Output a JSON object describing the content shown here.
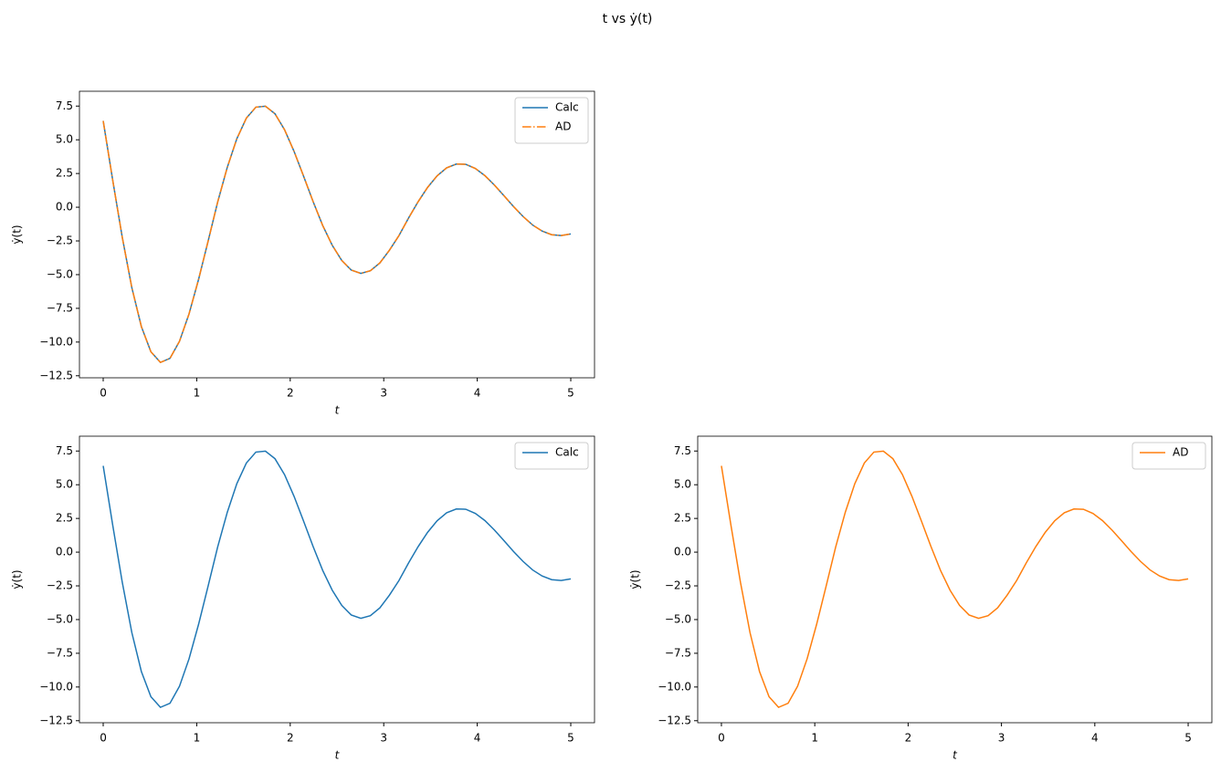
{
  "title": "t vs ẏ(t)",
  "chart_data": [
    {
      "type": "line",
      "xlabel": "t",
      "ylabel": "ẏ(t)",
      "legend": "upper right",
      "xlim": [
        -0.254,
        5.254
      ],
      "ylim": [
        -12.65,
        8.6
      ],
      "xticks": [
        0,
        1,
        2,
        3,
        4,
        5
      ],
      "yticks": [
        {
          "value": -12.5,
          "label": "−12.5"
        },
        {
          "value": -10,
          "label": "−10.0"
        },
        {
          "value": -7.5,
          "label": "−7.5"
        },
        {
          "value": -5,
          "label": "−5.0"
        },
        {
          "value": -2.5,
          "label": "−2.5"
        },
        {
          "value": 0,
          "label": "0.0"
        },
        2.5,
        {
          "value": 5,
          "label": "5.0"
        },
        7.5
      ],
      "x": [
        0,
        0.102,
        0.204,
        0.306,
        0.408,
        0.51,
        0.612,
        0.714,
        0.816,
        0.918,
        1.02,
        1.122,
        1.224,
        1.327,
        1.429,
        1.531,
        1.633,
        1.735,
        1.837,
        1.939,
        2.041,
        2.143,
        2.245,
        2.347,
        2.449,
        2.551,
        2.653,
        2.755,
        2.857,
        2.959,
        3.061,
        3.163,
        3.265,
        3.367,
        3.469,
        3.571,
        3.673,
        3.776,
        3.878,
        3.98,
        4.082,
        4.184,
        4.286,
        4.388,
        4.49,
        4.592,
        4.694,
        4.796,
        4.898,
        5
      ],
      "series": [
        {
          "name": "Calc",
          "color": "#1f77b4",
          "dash": "solid",
          "values": [
            6.4,
            1.99,
            -2.24,
            -5.96,
            -8.85,
            -10.72,
            -11.51,
            -11.21,
            -9.94,
            -7.91,
            -5.35,
            -2.51,
            0.38,
            2.96,
            5.08,
            6.61,
            7.42,
            7.49,
            6.93,
            5.75,
            4.14,
            2.3,
            0.41,
            -1.35,
            -2.82,
            -3.95,
            -4.66,
            -4.91,
            -4.71,
            -4.13,
            -3.19,
            -2.1,
            -0.81,
            0.4,
            1.47,
            2.33,
            2.92,
            3.2,
            3.18,
            2.87,
            2.34,
            1.64,
            0.85,
            0.05,
            -0.69,
            -1.32,
            -1.77,
            -2.04,
            -2.1,
            -1.98
          ]
        },
        {
          "name": "AD",
          "color": "#ff7f0e",
          "dash": "dashdot",
          "values": [
            6.4,
            1.99,
            -2.24,
            -5.96,
            -8.85,
            -10.72,
            -11.51,
            -11.21,
            -9.94,
            -7.91,
            -5.35,
            -2.51,
            0.38,
            2.96,
            5.08,
            6.61,
            7.42,
            7.49,
            6.93,
            5.75,
            4.14,
            2.3,
            0.41,
            -1.35,
            -2.82,
            -3.95,
            -4.66,
            -4.91,
            -4.71,
            -4.13,
            -3.19,
            -2.1,
            -0.81,
            0.4,
            1.47,
            2.33,
            2.92,
            3.2,
            3.18,
            2.87,
            2.34,
            1.64,
            0.85,
            0.05,
            -0.69,
            -1.32,
            -1.77,
            -2.04,
            -2.1,
            -1.98
          ]
        }
      ]
    },
    {
      "type": "line",
      "xlabel": "t",
      "ylabel": "ẏ(t)",
      "legend": "upper right",
      "xlim": [
        -0.254,
        5.254
      ],
      "ylim": [
        -12.65,
        8.6
      ],
      "xticks": [
        0,
        1,
        2,
        3,
        4,
        5
      ],
      "yticks": [
        {
          "value": -12.5,
          "label": "−12.5"
        },
        {
          "value": -10,
          "label": "−10.0"
        },
        {
          "value": -7.5,
          "label": "−7.5"
        },
        {
          "value": -5,
          "label": "−5.0"
        },
        {
          "value": -2.5,
          "label": "−2.5"
        },
        {
          "value": 0,
          "label": "0.0"
        },
        2.5,
        {
          "value": 5,
          "label": "5.0"
        },
        7.5
      ],
      "x": [
        0,
        0.102,
        0.204,
        0.306,
        0.408,
        0.51,
        0.612,
        0.714,
        0.816,
        0.918,
        1.02,
        1.122,
        1.224,
        1.327,
        1.429,
        1.531,
        1.633,
        1.735,
        1.837,
        1.939,
        2.041,
        2.143,
        2.245,
        2.347,
        2.449,
        2.551,
        2.653,
        2.755,
        2.857,
        2.959,
        3.061,
        3.163,
        3.265,
        3.367,
        3.469,
        3.571,
        3.673,
        3.776,
        3.878,
        3.98,
        4.082,
        4.184,
        4.286,
        4.388,
        4.49,
        4.592,
        4.694,
        4.796,
        4.898,
        5
      ],
      "series": [
        {
          "name": "Calc",
          "color": "#1f77b4",
          "dash": "solid",
          "values": [
            6.4,
            1.99,
            -2.24,
            -5.96,
            -8.85,
            -10.72,
            -11.51,
            -11.21,
            -9.94,
            -7.91,
            -5.35,
            -2.51,
            0.38,
            2.96,
            5.08,
            6.61,
            7.42,
            7.49,
            6.93,
            5.75,
            4.14,
            2.3,
            0.41,
            -1.35,
            -2.82,
            -3.95,
            -4.66,
            -4.91,
            -4.71,
            -4.13,
            -3.19,
            -2.1,
            -0.81,
            0.4,
            1.47,
            2.33,
            2.92,
            3.2,
            3.18,
            2.87,
            2.34,
            1.64,
            0.85,
            0.05,
            -0.69,
            -1.32,
            -1.77,
            -2.04,
            -2.1,
            -1.98
          ]
        }
      ]
    },
    {
      "type": "line",
      "xlabel": "t",
      "ylabel": "ẏ(t)",
      "legend": "upper right",
      "xlim": [
        -0.254,
        5.254
      ],
      "ylim": [
        -12.65,
        8.6
      ],
      "xticks": [
        0,
        1,
        2,
        3,
        4,
        5
      ],
      "yticks": [
        {
          "value": -12.5,
          "label": "−12.5"
        },
        {
          "value": -10,
          "label": "−10.0"
        },
        {
          "value": -7.5,
          "label": "−7.5"
        },
        {
          "value": -5,
          "label": "−5.0"
        },
        {
          "value": -2.5,
          "label": "−2.5"
        },
        {
          "value": 0,
          "label": "0.0"
        },
        2.5,
        {
          "value": 5,
          "label": "5.0"
        },
        7.5
      ],
      "x": [
        0,
        0.102,
        0.204,
        0.306,
        0.408,
        0.51,
        0.612,
        0.714,
        0.816,
        0.918,
        1.02,
        1.122,
        1.224,
        1.327,
        1.429,
        1.531,
        1.633,
        1.735,
        1.837,
        1.939,
        2.041,
        2.143,
        2.245,
        2.347,
        2.449,
        2.551,
        2.653,
        2.755,
        2.857,
        2.959,
        3.061,
        3.163,
        3.265,
        3.367,
        3.469,
        3.571,
        3.673,
        3.776,
        3.878,
        3.98,
        4.082,
        4.184,
        4.286,
        4.388,
        4.49,
        4.592,
        4.694,
        4.796,
        4.898,
        5
      ],
      "series": [
        {
          "name": "AD",
          "color": "#ff7f0e",
          "dash": "solid",
          "values": [
            6.4,
            1.99,
            -2.24,
            -5.96,
            -8.85,
            -10.72,
            -11.51,
            -11.21,
            -9.94,
            -7.91,
            -5.35,
            -2.51,
            0.38,
            2.96,
            5.08,
            6.61,
            7.42,
            7.49,
            6.93,
            5.75,
            4.14,
            2.3,
            0.41,
            -1.35,
            -2.82,
            -3.95,
            -4.66,
            -4.91,
            -4.71,
            -4.13,
            -3.19,
            -2.1,
            -0.81,
            0.4,
            1.47,
            2.33,
            2.92,
            3.2,
            3.18,
            2.87,
            2.34,
            1.64,
            0.85,
            0.05,
            -0.69,
            -1.32,
            -1.77,
            -2.04,
            -2.1,
            -1.98
          ]
        }
      ]
    }
  ]
}
